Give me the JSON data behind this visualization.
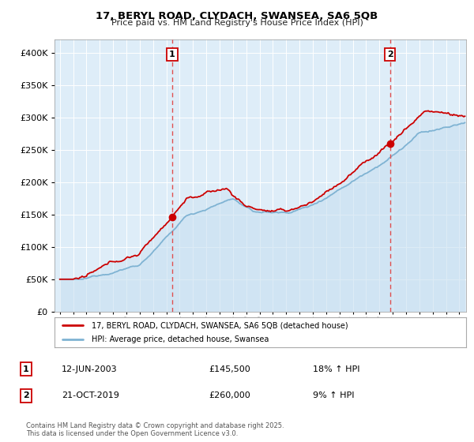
{
  "title_line1": "17, BERYL ROAD, CLYDACH, SWANSEA, SA6 5QB",
  "title_line2": "Price paid vs. HM Land Registry's House Price Index (HPI)",
  "legend_label_red": "17, BERYL ROAD, CLYDACH, SWANSEA, SA6 5QB (detached house)",
  "legend_label_blue": "HPI: Average price, detached house, Swansea",
  "annotation1_label": "1",
  "annotation1_date": "12-JUN-2003",
  "annotation1_price": "£145,500",
  "annotation1_hpi": "18% ↑ HPI",
  "annotation2_label": "2",
  "annotation2_date": "21-OCT-2019",
  "annotation2_price": "£260,000",
  "annotation2_hpi": "9% ↑ HPI",
  "footer": "Contains HM Land Registry data © Crown copyright and database right 2025.\nThis data is licensed under the Open Government Licence v3.0.",
  "red_color": "#cc0000",
  "blue_color": "#7fb3d3",
  "blue_fill_color": "#c8dff0",
  "bg_color": "#deedf8",
  "grid_color": "#ffffff",
  "vline_color": "#e05050",
  "point1_x_year": 2003.44,
  "point1_y": 145500,
  "point2_x_year": 2019.8,
  "point2_y": 260000,
  "ylim": [
    0,
    420000
  ],
  "xlim_start": 1994.6,
  "xlim_end": 2025.5
}
